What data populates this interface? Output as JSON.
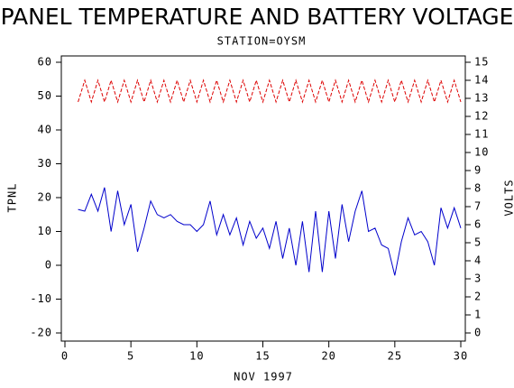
{
  "chart_data": {
    "type": "line",
    "title": "PANEL TEMPERATURE AND BATTERY VOLTAGE",
    "subtitle": "STATION=OYSM",
    "x_label": "NOV 1997",
    "y_label": "TPNL",
    "y2_label": "VOLTS",
    "x": [
      1,
      1.5,
      2,
      2.5,
      3,
      3.5,
      4,
      4.5,
      5,
      5.5,
      6,
      6.5,
      7,
      7.5,
      8,
      8.5,
      9,
      9.5,
      10,
      10.5,
      11,
      11.5,
      12,
      12.5,
      13,
      13.5,
      14,
      14.5,
      15,
      15.5,
      16,
      16.5,
      17,
      17.5,
      18,
      18.5,
      19,
      19.5,
      20,
      20.5,
      21,
      21.5,
      22,
      22.5,
      23,
      23.5,
      24,
      24.5,
      25,
      25.5,
      26,
      26.5,
      27,
      27.5,
      28,
      28.5,
      29,
      29.5,
      30
    ],
    "series": [
      {
        "name": "TPNL",
        "color": "#0000cc",
        "axis": "y",
        "values": [
          16.5,
          16,
          21,
          16,
          23,
          10,
          22,
          12,
          18,
          4,
          11,
          19,
          15,
          14,
          15,
          13,
          12,
          12,
          10,
          12,
          19,
          9,
          15,
          9,
          14,
          6,
          13,
          8,
          11,
          5,
          13,
          2,
          11,
          0,
          13,
          -2,
          16,
          -2,
          16,
          2,
          18,
          7,
          16,
          22,
          10,
          11,
          6,
          5,
          -3,
          7,
          14,
          9,
          10,
          7,
          0,
          17,
          11,
          17,
          11
        ]
      },
      {
        "name": "VOLTS",
        "color": "#dd0000",
        "axis": "y2",
        "dashed": true,
        "values": [
          12.8,
          14,
          12.8,
          14,
          12.8,
          14,
          12.8,
          14,
          12.8,
          14,
          12.8,
          14,
          12.8,
          14,
          12.8,
          14,
          12.8,
          14,
          12.8,
          14,
          12.8,
          14,
          12.8,
          14,
          12.8,
          14,
          12.8,
          14,
          12.8,
          14,
          12.8,
          14,
          12.8,
          14,
          12.8,
          14,
          12.8,
          14,
          12.8,
          14,
          12.8,
          14,
          12.8,
          14,
          12.8,
          14,
          12.8,
          14,
          12.8,
          14,
          12.8,
          14,
          12.8,
          14,
          12.8,
          14,
          12.8,
          14,
          12.8
        ]
      }
    ],
    "xlim": [
      0,
      30
    ],
    "xticks": [
      0,
      5,
      10,
      15,
      20,
      25,
      30
    ],
    "ylim": [
      -20,
      60
    ],
    "yticks": [
      -20,
      -10,
      0,
      10,
      20,
      30,
      40,
      50,
      60
    ],
    "y2lim": [
      0,
      15
    ],
    "y2ticks": [
      0,
      1,
      2,
      3,
      4,
      5,
      6,
      7,
      8,
      9,
      10,
      11,
      12,
      13,
      14,
      15
    ]
  }
}
